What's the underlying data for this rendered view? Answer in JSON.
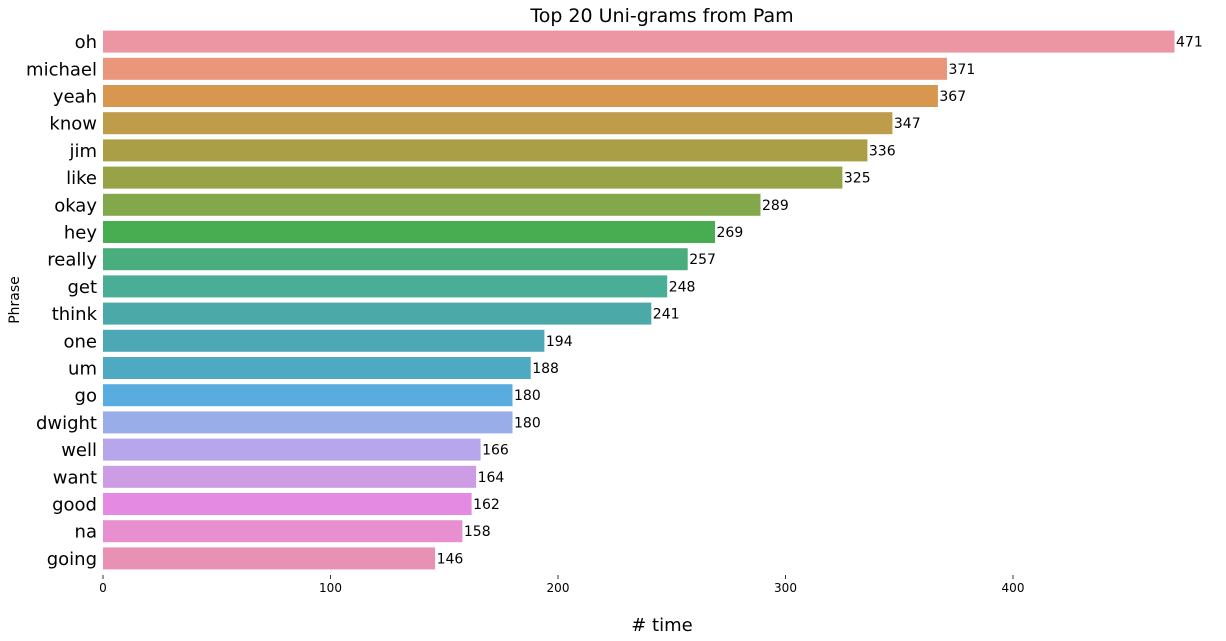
{
  "chart_data": {
    "type": "bar",
    "orientation": "horizontal",
    "title": "Top 20 Uni-grams from Pam",
    "xlabel": "# time",
    "ylabel": "Phrase",
    "categories": [
      "oh",
      "michael",
      "yeah",
      "know",
      "jim",
      "like",
      "okay",
      "hey",
      "really",
      "get",
      "think",
      "one",
      "um",
      "go",
      "dwight",
      "well",
      "want",
      "good",
      "na",
      "going"
    ],
    "values": [
      471,
      371,
      367,
      347,
      336,
      325,
      289,
      269,
      257,
      248,
      241,
      194,
      188,
      180,
      180,
      166,
      164,
      162,
      158,
      146
    ],
    "colors": [
      "#ec96a4",
      "#e9967d",
      "#d8974e",
      "#be9c49",
      "#aa9e47",
      "#98a246",
      "#82a84b",
      "#48ad51",
      "#4aad7e",
      "#4aad96",
      "#4baaa7",
      "#4ba8b4",
      "#4eaac0",
      "#58acde",
      "#99aee8",
      "#b7a6ec",
      "#cc9ce5",
      "#e58ae3",
      "#e890cf",
      "#e891b5"
    ],
    "xticks": [
      0,
      100,
      200,
      300,
      400
    ],
    "xlim": [
      0,
      480
    ],
    "grid": false
  }
}
